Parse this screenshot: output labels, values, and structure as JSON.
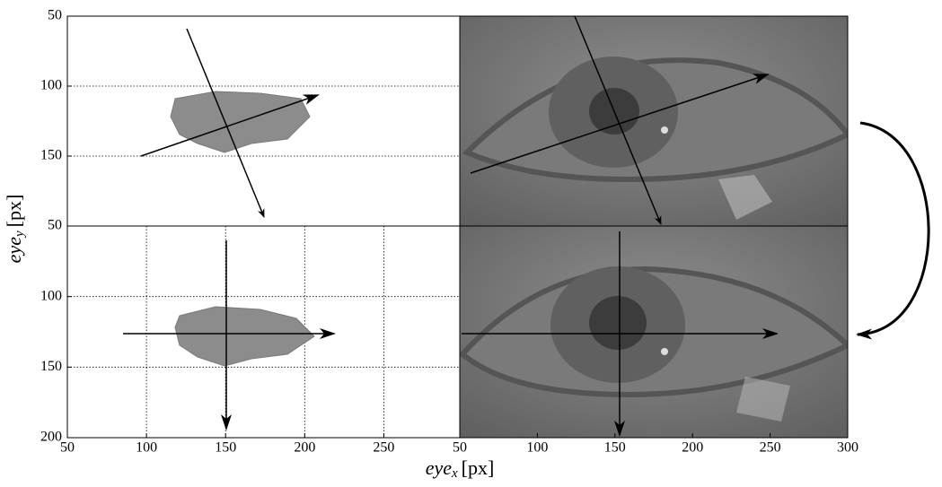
{
  "figure": {
    "xlabel": {
      "base": "eye",
      "sub": "x",
      "unit": "[px]"
    },
    "ylabel": {
      "base": "eye",
      "sub": "y",
      "unit": "[px]"
    }
  },
  "chart_data": [
    {
      "type": "scatter",
      "xlim": [
        50,
        298
      ],
      "ylim": [
        50,
        200
      ],
      "y_inverted": true,
      "yticks": [
        50,
        100,
        150
      ],
      "grid": true,
      "color": "#8c8c8c"
    },
    {
      "type": "image",
      "xlim": [
        50,
        300
      ],
      "ylim": [
        50,
        200
      ],
      "y_inverted": true
    },
    {
      "type": "scatter",
      "xlim": [
        50,
        298
      ],
      "ylim": [
        50,
        200
      ],
      "y_inverted": true,
      "yticks": [
        50,
        100,
        150,
        200
      ],
      "xticks": [
        50,
        100,
        150,
        200,
        250
      ],
      "grid": true,
      "color": "#8c8c8c"
    },
    {
      "type": "image",
      "xlim": [
        50,
        300
      ],
      "ylim": [
        50,
        200
      ],
      "y_inverted": true,
      "xticks": [
        50,
        100,
        150,
        200,
        250,
        300
      ]
    }
  ]
}
